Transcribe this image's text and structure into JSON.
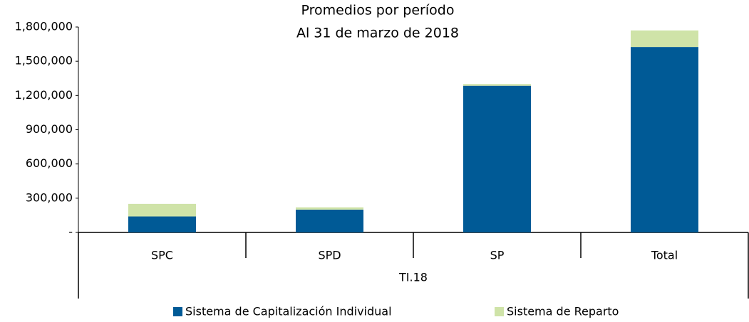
{
  "chart_data": {
    "type": "stacked_bar",
    "title": [
      "Promedios por período",
      "Al 31 de marzo de 2018"
    ],
    "categories": [
      "SPC",
      "SPD",
      "SP",
      "Total"
    ],
    "group_label": "TI.18",
    "series": [
      {
        "name": "Sistema de Capitalización Individual",
        "color": "#005a96",
        "values": [
          140000,
          200000,
          1285000,
          1625000
        ]
      },
      {
        "name": "Sistema de Reparto",
        "color": "#cfe3a8",
        "values": [
          110000,
          20000,
          15000,
          145000
        ]
      }
    ],
    "ylim": [
      0,
      1800000
    ],
    "yticks": [
      {
        "value": 0,
        "label": "-"
      },
      {
        "value": 300000,
        "label": "300,000"
      },
      {
        "value": 600000,
        "label": "600,000"
      },
      {
        "value": 900000,
        "label": "900,000"
      },
      {
        "value": 1200000,
        "label": "1,200,000"
      },
      {
        "value": 1500000,
        "label": "1,500,000"
      },
      {
        "value": 1800000,
        "label": "1,800,000"
      }
    ],
    "grid": false
  }
}
